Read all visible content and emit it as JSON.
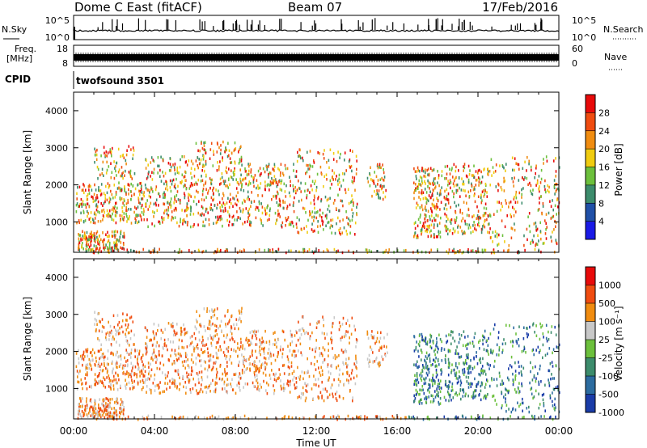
{
  "header": {
    "radar": "Dome C East (fitACF)",
    "beam": "Beam 07",
    "date": "17/Feb/2016"
  },
  "noise_panel": {
    "left_label": "N.Sky",
    "right_label": "N.Search",
    "ticks_left": [
      "10^5",
      "10^0"
    ],
    "ticks_right": [
      "10^5",
      "10^0"
    ]
  },
  "freq_panel": {
    "left_label_line1": "Freq.",
    "left_label_line2": "[MHz]",
    "left_ticks": [
      "18",
      "8"
    ],
    "right_label": "Nave",
    "right_ticks": [
      "60",
      "0"
    ]
  },
  "cpid_panel": {
    "label": "CPID",
    "value": "twofsound 3501"
  },
  "colors": {
    "power_scale": [
      "#1a1ae6",
      "#2050a8",
      "#3c8c6c",
      "#6cc03c",
      "#f0cc10",
      "#f08c10",
      "#f04c10",
      "#e80a0a"
    ],
    "velocity_scale": [
      "#1a3ca8",
      "#2c6ca0",
      "#3c8c6c",
      "#6cc03c",
      "#c8c8c8",
      "#f08c10",
      "#f04c10",
      "#e80a0a"
    ]
  },
  "time_axis": {
    "label": "Time UT",
    "ticks": [
      "00:00",
      "04:00",
      "08:00",
      "12:00",
      "16:00",
      "20:00",
      "00:00"
    ]
  },
  "chart_data": [
    {
      "type": "heatmap",
      "title": "Power",
      "ylabel": "Slant Range [km]",
      "colorbar_label": "Power [dB]",
      "colorbar_ticks": [
        "28",
        "24",
        "20",
        "16",
        "12",
        "8",
        "4"
      ],
      "yticks": [
        "4000",
        "3000",
        "2000",
        "1000"
      ],
      "xlim": [
        0,
        24
      ],
      "ylim": [
        180,
        4500
      ],
      "clim": [
        0,
        32
      ]
    },
    {
      "type": "heatmap",
      "title": "Velocity",
      "ylabel": "Slant Range [km]",
      "colorbar_label": "Velocity [m s⁻¹]",
      "colorbar_ticks": [
        "1000",
        "500",
        "100",
        "25",
        "-25",
        "-100",
        "-500",
        "-1000"
      ],
      "yticks": [
        "4000",
        "3000",
        "2000",
        "1000"
      ],
      "xlim": [
        0,
        24
      ],
      "ylim": [
        180,
        4500
      ]
    }
  ]
}
